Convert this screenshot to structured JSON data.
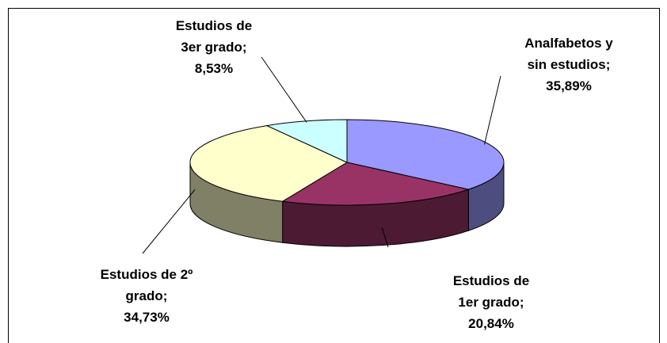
{
  "chart_data": {
    "type": "pie3d",
    "categories": [
      "Analfabetos y sin estudios;",
      "Estudios de 1er grado;",
      "Estudios de 2º grado;",
      "Estudios de 3er grado;"
    ],
    "values": [
      35.89,
      20.84,
      34.73,
      8.53
    ],
    "value_labels": [
      "35,89%",
      "20,84%",
      "34,73%",
      "8,53%"
    ],
    "colors": [
      "#9999ff",
      "#993366",
      "#ffffcc",
      "#ccffff"
    ]
  }
}
